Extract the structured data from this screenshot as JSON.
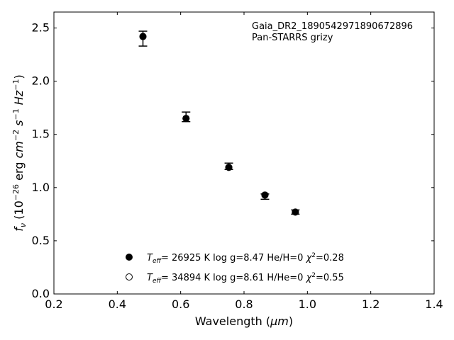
{
  "chart_data": {
    "type": "scatter",
    "title": "",
    "xlabel": {
      "pre": "Wavelength (",
      "unit": "μm",
      "post": ")"
    },
    "ylabel": {
      "f": "f",
      "nu": "ν",
      "p1": " (10",
      "exp1": "−26",
      "p2": " erg ",
      "cm": "cm",
      "exp2": "−2",
      "s": " s",
      "exp3": "−1",
      "hz": " Hz",
      "exp4": "−1",
      "close": ")"
    },
    "xlim": [
      0.2,
      1.4
    ],
    "ylim": [
      0.0,
      2.65
    ],
    "xticks": [
      0.2,
      0.4,
      0.6,
      0.8,
      1.0,
      1.2,
      1.4
    ],
    "xtick_labels": [
      "0.2",
      "0.4",
      "0.6",
      "0.8",
      "1.0",
      "1.2",
      "1.4"
    ],
    "yticks": [
      0.0,
      0.5,
      1.0,
      1.5,
      2.0,
      2.5
    ],
    "ytick_labels": [
      "0.0",
      "0.5",
      "1.0",
      "1.5",
      "2.0",
      "2.5"
    ],
    "grid": false,
    "annotation": {
      "line1": "Gaia_DR2_1890542971890672896",
      "line2": "Pan-STARRS grizy"
    },
    "observed": {
      "x": [
        0.481,
        0.617,
        0.752,
        0.866,
        0.962
      ],
      "y": [
        2.41,
        1.66,
        1.2,
        0.92,
        0.77
      ],
      "err_low": [
        0.08,
        0.04,
        0.03,
        0.03,
        0.02
      ],
      "err_high": [
        0.06,
        0.05,
        0.03,
        0.02,
        0.02
      ]
    },
    "series": [
      {
        "marker": "filled",
        "label": {
          "teff": "T",
          "eff": "eff",
          "rest": "= 26925 K  log g=8.47  He/H=0  ",
          "chi": "χ",
          "chi_exp": "2",
          "chi_val": "=0.28"
        },
        "x": [
          0.481,
          0.617,
          0.752,
          0.866,
          0.962
        ],
        "y": [
          2.42,
          1.65,
          1.19,
          0.93,
          0.77
        ]
      },
      {
        "marker": "open",
        "label": {
          "teff": "T",
          "eff": "eff",
          "rest": "= 34894 K  log g=8.61  H/He=0  ",
          "chi": "χ",
          "chi_exp": "2",
          "chi_val": "=0.55"
        },
        "x": [
          0.481,
          0.617,
          0.752,
          0.866,
          0.962
        ],
        "y": [
          2.42,
          1.65,
          1.19,
          0.93,
          0.77
        ]
      }
    ],
    "legend_loc": "lower-center"
  }
}
